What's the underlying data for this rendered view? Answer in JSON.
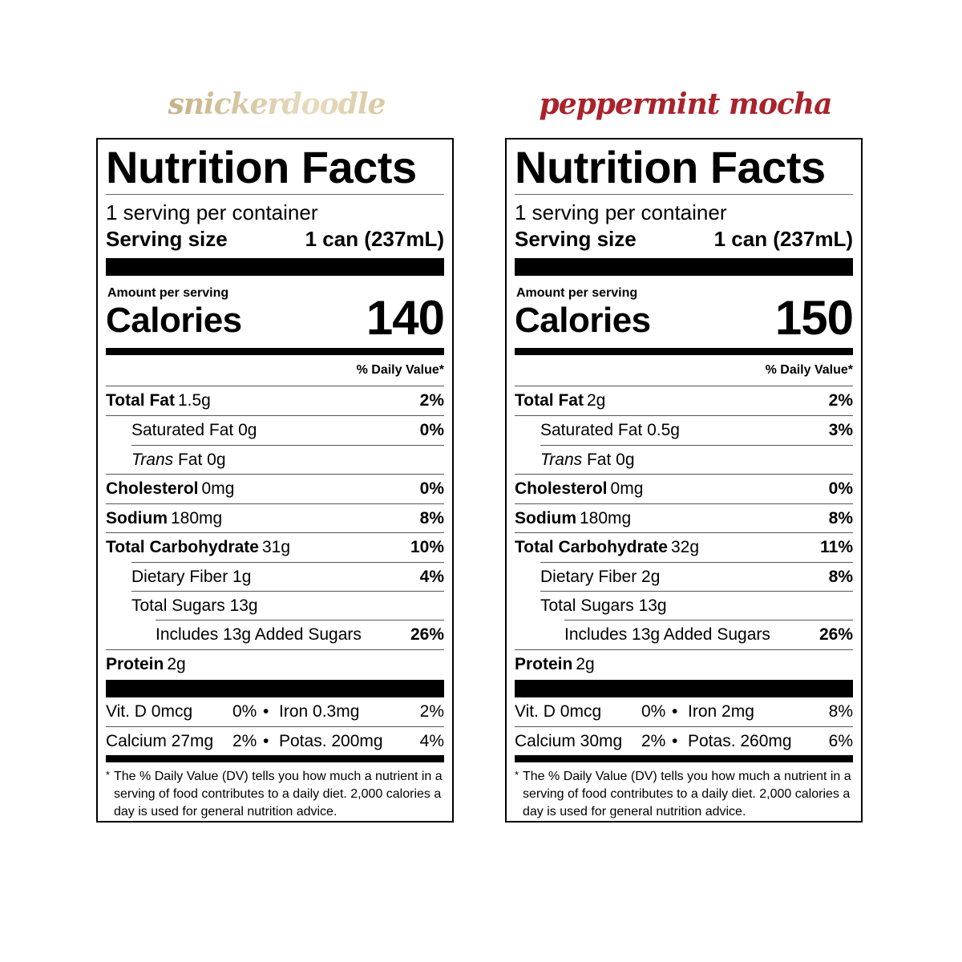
{
  "flavors": [
    {
      "name": "snickerdoodle",
      "color": "#c8ae7e",
      "title": "Nutrition Facts",
      "servings": "1 serving per container",
      "serving_size_label": "Serving size",
      "serving_size_value": "1 can (237mL)",
      "amount_per_serving": "Amount per serving",
      "calories_label": "Calories",
      "calories_value": "140",
      "dv_header": "% Daily Value*",
      "nutrients": [
        {
          "name": "Total Fat",
          "value": "1.5g",
          "dv": "2%"
        },
        {
          "name": "Saturated Fat 0g",
          "dv": "0%"
        },
        {
          "italic": "Trans",
          "name": "Fat 0g"
        },
        {
          "name": "Cholesterol",
          "value": "0mg",
          "dv": "0%"
        },
        {
          "name": "Sodium",
          "value": "180mg",
          "dv": "8%"
        },
        {
          "name": "Total Carbohydrate",
          "value": "31g",
          "dv": "10%"
        },
        {
          "name": "Dietary Fiber 1g",
          "dv": "4%"
        },
        {
          "name": "Total Sugars 13g"
        },
        {
          "name": "Includes 13g Added Sugars",
          "dv": "26%"
        },
        {
          "name": "Protein",
          "value": "2g"
        }
      ],
      "vitamins": [
        {
          "a": "Vit. D 0mcg",
          "a_dv": "0%",
          "sep": "•",
          "b": "Iron 0.3mg",
          "b_dv": "2%"
        },
        {
          "a": "Calcium 27mg",
          "a_dv": "2%",
          "sep": "•",
          "b": "Potas. 200mg",
          "b_dv": "4%"
        }
      ],
      "footnote_star": "*",
      "footnote": "The % Daily Value (DV) tells you how much a nutrient in a serving of food contributes to a daily diet. 2,000 calories a day is used for general nutrition advice."
    },
    {
      "name": "peppermint mocha",
      "color": "#a8232c",
      "title": "Nutrition Facts",
      "servings": "1 serving per container",
      "serving_size_label": "Serving size",
      "serving_size_value": "1 can (237mL)",
      "amount_per_serving": "Amount per serving",
      "calories_label": "Calories",
      "calories_value": "150",
      "dv_header": "% Daily Value*",
      "nutrients": [
        {
          "name": "Total Fat",
          "value": "2g",
          "dv": "2%"
        },
        {
          "name": "Saturated Fat 0.5g",
          "dv": "3%"
        },
        {
          "italic": "Trans",
          "name": "Fat 0g"
        },
        {
          "name": "Cholesterol",
          "value": "0mg",
          "dv": "0%"
        },
        {
          "name": "Sodium",
          "value": "180mg",
          "dv": "8%"
        },
        {
          "name": "Total Carbohydrate",
          "value": "32g",
          "dv": "11%"
        },
        {
          "name": "Dietary Fiber 2g",
          "dv": "8%"
        },
        {
          "name": "Total Sugars 13g"
        },
        {
          "name": "Includes 13g Added Sugars",
          "dv": "26%"
        },
        {
          "name": "Protein",
          "value": "2g"
        }
      ],
      "vitamins": [
        {
          "a": "Vit. D 0mcg",
          "a_dv": "0%",
          "sep": "•",
          "b": "Iron 2mg",
          "b_dv": "8%"
        },
        {
          "a": "Calcium 30mg",
          "a_dv": "2%",
          "sep": "•",
          "b": "Potas. 260mg",
          "b_dv": "6%"
        }
      ],
      "footnote_star": "*",
      "footnote": "The % Daily Value (DV) tells you how much a nutrient in a serving of food contributes to a daily diet. 2,000 calories a day is used for general nutrition advice."
    }
  ]
}
